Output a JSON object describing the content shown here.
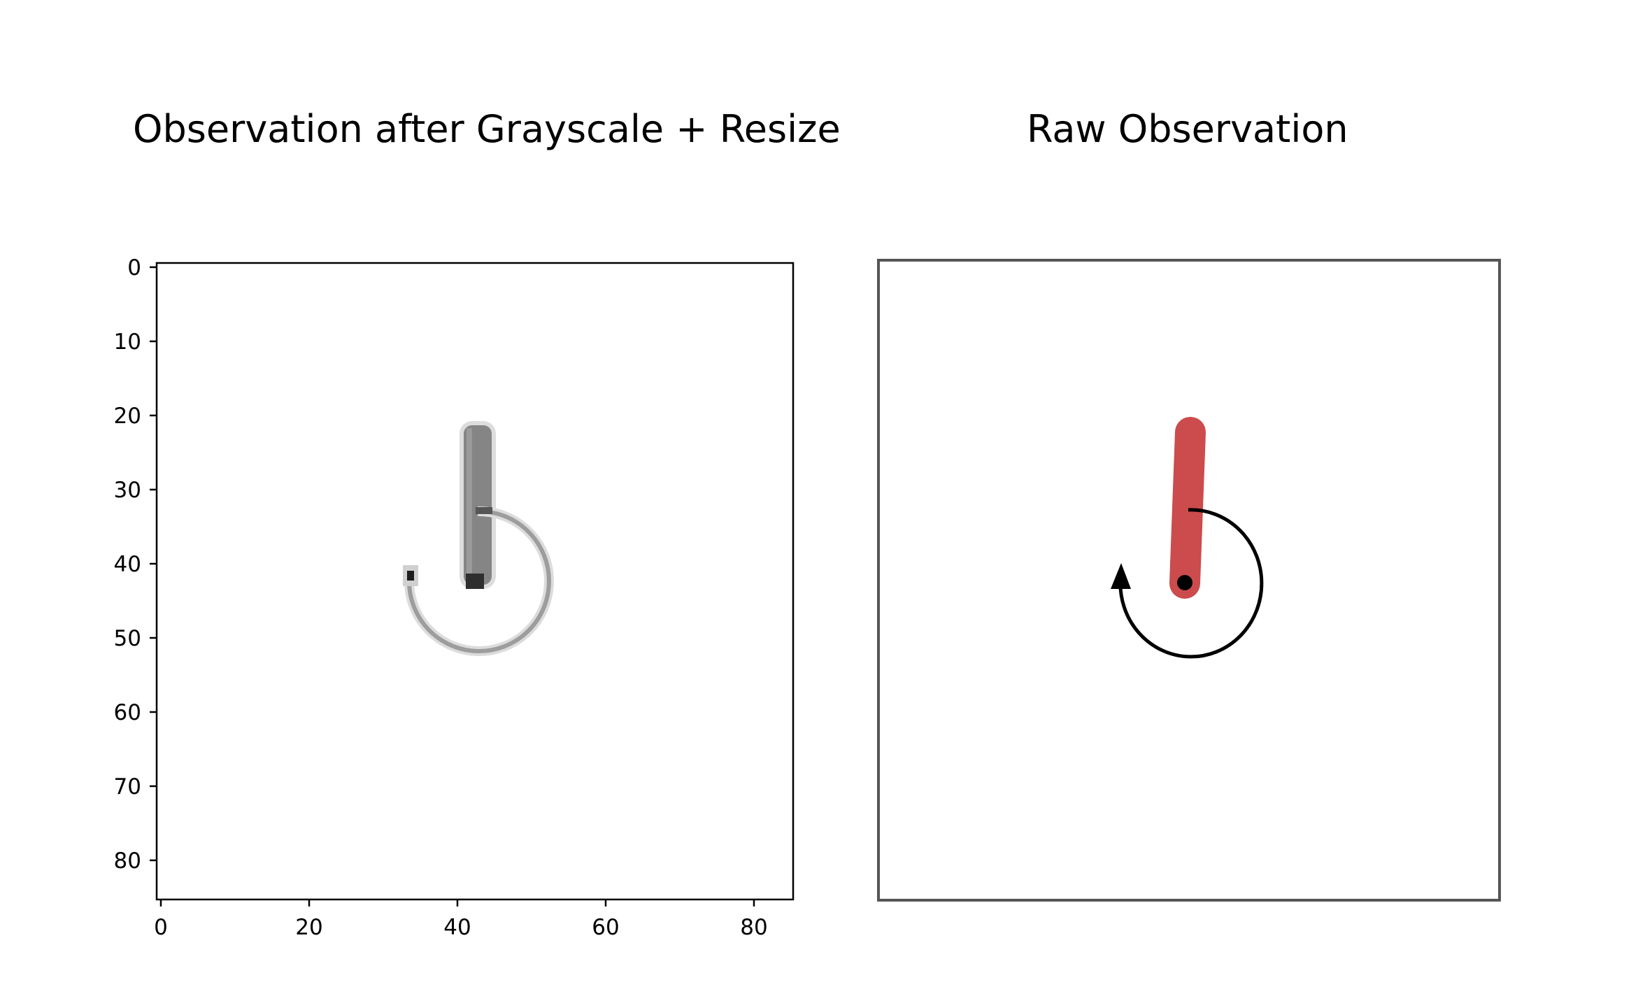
{
  "titles": {
    "left": "Observation after Grayscale + Resize",
    "right": "Raw  Observation"
  },
  "left_axes": {
    "y_ticks": [
      "0",
      "10",
      "20",
      "30",
      "40",
      "50",
      "60",
      "70",
      "80"
    ],
    "x_ticks": [
      "0",
      "20",
      "40",
      "60",
      "80"
    ]
  },
  "colors": {
    "pole_red": "#cc4b4c",
    "axis": "#000000",
    "raw_border": "#555555",
    "gray_pole": "#7f7f7f",
    "gray_arc": "#a0a0a0"
  },
  "icons": {
    "rotation_arrow": "counter-clockwise-arrow-icon"
  }
}
